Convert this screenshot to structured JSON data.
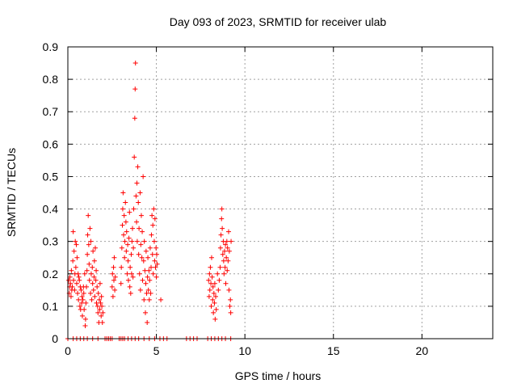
{
  "chart_data": {
    "type": "scatter",
    "title": "Day 093 of 2023, SRMTID for receiver ulab",
    "xlabel": "GPS time / hours",
    "ylabel": "SRMTID / TECUs",
    "xlim": [
      0,
      24
    ],
    "ylim": [
      0,
      0.9
    ],
    "xticks": [
      "0",
      "5",
      "10",
      "15",
      "20"
    ],
    "yticks": [
      "0",
      "0.1",
      "0.2",
      "0.3",
      "0.4",
      "0.5",
      "0.6",
      "0.7",
      "0.8",
      "0.9"
    ],
    "grid": true,
    "marker": "plus",
    "color": "#ff0000",
    "series": [
      {
        "points": [
          [
            0.05,
            0.18
          ],
          [
            0.08,
            0.14
          ],
          [
            0.1,
            0.16
          ],
          [
            0.12,
            0.19
          ],
          [
            0.15,
            0.17
          ],
          [
            0.18,
            0.13
          ],
          [
            0.2,
            0.21
          ],
          [
            0.22,
            0.15
          ],
          [
            0.25,
            0.16
          ],
          [
            0.28,
            0.24
          ],
          [
            0.3,
            0.33
          ],
          [
            0.32,
            0.18
          ],
          [
            0.35,
            0.27
          ],
          [
            0.38,
            0.15
          ],
          [
            0.4,
            0.2
          ],
          [
            0.42,
            0.3
          ],
          [
            0.45,
            0.22
          ],
          [
            0.48,
            0.29
          ],
          [
            0.5,
            0.17
          ],
          [
            0.52,
            0.25
          ],
          [
            0.55,
            0.14
          ],
          [
            0.58,
            0.2
          ],
          [
            0.6,
            0.12
          ],
          [
            0.62,
            0.19
          ],
          [
            0.65,
            0.18
          ],
          [
            0.68,
            0.1
          ],
          [
            0.7,
            0.16
          ],
          [
            0.72,
            0.09
          ],
          [
            0.75,
            0.15
          ],
          [
            0.78,
            0.11
          ],
          [
            0.8,
            0.13
          ],
          [
            0.82,
            0.07
          ],
          [
            0.85,
            0.12
          ],
          [
            0.88,
            0.16
          ],
          [
            0.9,
            0.14
          ],
          [
            0.92,
            0.09
          ],
          [
            0.95,
            0.2
          ],
          [
            0.98,
            0.04
          ],
          [
            1.0,
            0.06
          ],
          [
            1.02,
            0.11
          ],
          [
            1.05,
            0.16
          ],
          [
            1.08,
            0.21
          ],
          [
            1.1,
            0.26
          ],
          [
            1.12,
            0.32
          ],
          [
            1.15,
            0.38
          ],
          [
            1.18,
            0.29
          ],
          [
            1.2,
            0.23
          ],
          [
            1.22,
            0.18
          ],
          [
            1.25,
            0.34
          ],
          [
            1.28,
            0.14
          ],
          [
            1.3,
            0.3
          ],
          [
            1.32,
            0.2
          ],
          [
            1.35,
            0.12
          ],
          [
            1.38,
            0.22
          ],
          [
            1.4,
            0.17
          ],
          [
            1.42,
            0.27
          ],
          [
            1.45,
            0.15
          ],
          [
            1.48,
            0.19
          ],
          [
            1.5,
            0.24
          ],
          [
            1.52,
            0.13
          ],
          [
            1.55,
            0.28
          ],
          [
            1.58,
            0.18
          ],
          [
            1.6,
            0.21
          ],
          [
            1.62,
            0.11
          ],
          [
            1.65,
            0.16
          ],
          [
            1.68,
            0.1
          ],
          [
            1.7,
            0.08
          ],
          [
            1.72,
            0.14
          ],
          [
            1.75,
            0.05
          ],
          [
            1.78,
            0.12
          ],
          [
            1.8,
            0.09
          ],
          [
            1.82,
            0.17
          ],
          [
            1.85,
            0.11
          ],
          [
            1.88,
            0.07
          ],
          [
            1.9,
            0.13
          ],
          [
            1.92,
            0.1
          ],
          [
            1.95,
            0.05
          ],
          [
            1.98,
            0.08
          ],
          [
            2.5,
            0.16
          ],
          [
            2.52,
            0.2
          ],
          [
            2.55,
            0.13
          ],
          [
            2.58,
            0.22
          ],
          [
            2.6,
            0.18
          ],
          [
            2.62,
            0.25
          ],
          [
            2.65,
            0.15
          ],
          [
            2.68,
            0.19
          ],
          [
            3.0,
            0.17
          ],
          [
            3.02,
            0.22
          ],
          [
            3.05,
            0.28
          ],
          [
            3.08,
            0.35
          ],
          [
            3.1,
            0.4
          ],
          [
            3.12,
            0.45
          ],
          [
            3.15,
            0.32
          ],
          [
            3.18,
            0.38
          ],
          [
            3.2,
            0.25
          ],
          [
            3.22,
            0.3
          ],
          [
            3.25,
            0.42
          ],
          [
            3.28,
            0.36
          ],
          [
            3.3,
            0.27
          ],
          [
            3.32,
            0.33
          ],
          [
            3.35,
            0.2
          ],
          [
            3.38,
            0.29
          ],
          [
            3.4,
            0.24
          ],
          [
            3.42,
            0.18
          ],
          [
            3.45,
            0.31
          ],
          [
            3.48,
            0.39
          ],
          [
            3.5,
            0.16
          ],
          [
            3.52,
            0.22
          ],
          [
            3.55,
            0.14
          ],
          [
            3.58,
            0.26
          ],
          [
            3.6,
            0.2
          ],
          [
            3.62,
            0.3
          ],
          [
            3.65,
            0.34
          ],
          [
            3.68,
            0.19
          ],
          [
            3.7,
            0.28
          ],
          [
            3.72,
            0.4
          ],
          [
            3.75,
            0.56
          ],
          [
            3.78,
            0.68
          ],
          [
            3.8,
            0.77
          ],
          [
            3.82,
            0.85
          ],
          [
            3.85,
            0.44
          ],
          [
            3.88,
            0.36
          ],
          [
            3.9,
            0.48
          ],
          [
            3.92,
            0.3
          ],
          [
            3.95,
            0.53
          ],
          [
            3.98,
            0.42
          ],
          [
            4.0,
            0.26
          ],
          [
            4.02,
            0.34
          ],
          [
            4.05,
            0.2
          ],
          [
            4.08,
            0.45
          ],
          [
            4.1,
            0.15
          ],
          [
            4.12,
            0.29
          ],
          [
            4.15,
            0.38
          ],
          [
            4.18,
            0.25
          ],
          [
            4.2,
            0.33
          ],
          [
            4.22,
            0.18
          ],
          [
            4.25,
            0.5
          ],
          [
            4.28,
            0.24
          ],
          [
            4.3,
            0.12
          ],
          [
            4.32,
            0.3
          ],
          [
            4.35,
            0.21
          ],
          [
            4.38,
            0.08
          ],
          [
            4.4,
            0.17
          ],
          [
            4.42,
            0.27
          ],
          [
            4.45,
            0.14
          ],
          [
            4.48,
            0.05
          ],
          [
            4.5,
            0.19
          ],
          [
            4.52,
            0.25
          ],
          [
            4.55,
            0.15
          ],
          [
            4.58,
            0.21
          ],
          [
            4.6,
            0.12
          ],
          [
            4.62,
            0.18
          ],
          [
            4.65,
            0.28
          ],
          [
            4.68,
            0.14
          ],
          [
            4.7,
            0.22
          ],
          [
            4.72,
            0.32
          ],
          [
            4.75,
            0.38
          ],
          [
            4.78,
            0.26
          ],
          [
            4.8,
            0.35
          ],
          [
            4.82,
            0.2
          ],
          [
            4.85,
            0.4
          ],
          [
            4.88,
            0.3
          ],
          [
            4.9,
            0.24
          ],
          [
            4.92,
            0.37
          ],
          [
            4.95,
            0.22
          ],
          [
            4.98,
            0.28
          ],
          [
            5.0,
            0.19
          ],
          [
            5.02,
            0.26
          ],
          [
            5.05,
            0.23
          ],
          [
            5.25,
            0.12
          ],
          [
            7.95,
            0.18
          ],
          [
            7.98,
            0.13
          ],
          [
            8.0,
            0.2
          ],
          [
            8.02,
            0.15
          ],
          [
            8.05,
            0.22
          ],
          [
            8.08,
            0.17
          ],
          [
            8.1,
            0.1
          ],
          [
            8.12,
            0.25
          ],
          [
            8.15,
            0.19
          ],
          [
            8.18,
            0.12
          ],
          [
            8.2,
            0.16
          ],
          [
            8.22,
            0.08
          ],
          [
            8.25,
            0.14
          ],
          [
            8.28,
            0.11
          ],
          [
            8.3,
            0.17
          ],
          [
            8.32,
            0.06
          ],
          [
            8.35,
            0.13
          ],
          [
            8.38,
            0.09
          ],
          [
            8.45,
            0.2
          ],
          [
            8.5,
            0.15
          ],
          [
            8.55,
            0.18
          ],
          [
            8.6,
            0.22
          ],
          [
            8.62,
            0.28
          ],
          [
            8.65,
            0.32
          ],
          [
            8.68,
            0.37
          ],
          [
            8.7,
            0.4
          ],
          [
            8.72,
            0.34
          ],
          [
            8.75,
            0.26
          ],
          [
            8.78,
            0.3
          ],
          [
            8.8,
            0.24
          ],
          [
            8.82,
            0.2
          ],
          [
            8.85,
            0.27
          ],
          [
            8.88,
            0.22
          ],
          [
            8.9,
            0.29
          ],
          [
            8.92,
            0.17
          ],
          [
            8.95,
            0.25
          ],
          [
            8.98,
            0.3
          ],
          [
            9.0,
            0.21
          ],
          [
            9.02,
            0.28
          ],
          [
            9.05,
            0.24
          ],
          [
            9.08,
            0.33
          ],
          [
            9.1,
            0.15
          ],
          [
            9.12,
            0.27
          ],
          [
            9.15,
            0.1
          ],
          [
            9.18,
            0.12
          ],
          [
            9.2,
            0.08
          ],
          [
            9.22,
            0.3
          ],
          [
            0.0,
            0.0
          ],
          [
            0.3,
            0.0
          ],
          [
            0.5,
            0.0
          ],
          [
            0.7,
            0.0
          ],
          [
            0.9,
            0.0
          ],
          [
            1.1,
            0.0
          ],
          [
            1.4,
            0.0
          ],
          [
            1.7,
            0.0
          ],
          [
            2.1,
            0.0
          ],
          [
            2.2,
            0.0
          ],
          [
            2.3,
            0.0
          ],
          [
            2.4,
            0.0
          ],
          [
            2.5,
            0.0
          ],
          [
            2.9,
            0.0
          ],
          [
            3.0,
            0.0
          ],
          [
            3.1,
            0.0
          ],
          [
            3.2,
            0.0
          ],
          [
            3.4,
            0.0
          ],
          [
            3.6,
            0.0
          ],
          [
            3.8,
            0.0
          ],
          [
            4.0,
            0.0
          ],
          [
            4.3,
            0.0
          ],
          [
            4.6,
            0.0
          ],
          [
            4.9,
            0.0
          ],
          [
            5.2,
            0.0
          ],
          [
            5.4,
            0.0
          ],
          [
            5.6,
            0.0
          ],
          [
            6.7,
            0.0
          ],
          [
            6.9,
            0.0
          ],
          [
            7.1,
            0.0
          ],
          [
            7.3,
            0.0
          ],
          [
            7.9,
            0.0
          ],
          [
            8.1,
            0.0
          ],
          [
            8.3,
            0.0
          ],
          [
            8.5,
            0.0
          ],
          [
            8.7,
            0.0
          ],
          [
            8.9,
            0.0
          ],
          [
            9.2,
            0.0
          ]
        ]
      }
    ]
  }
}
